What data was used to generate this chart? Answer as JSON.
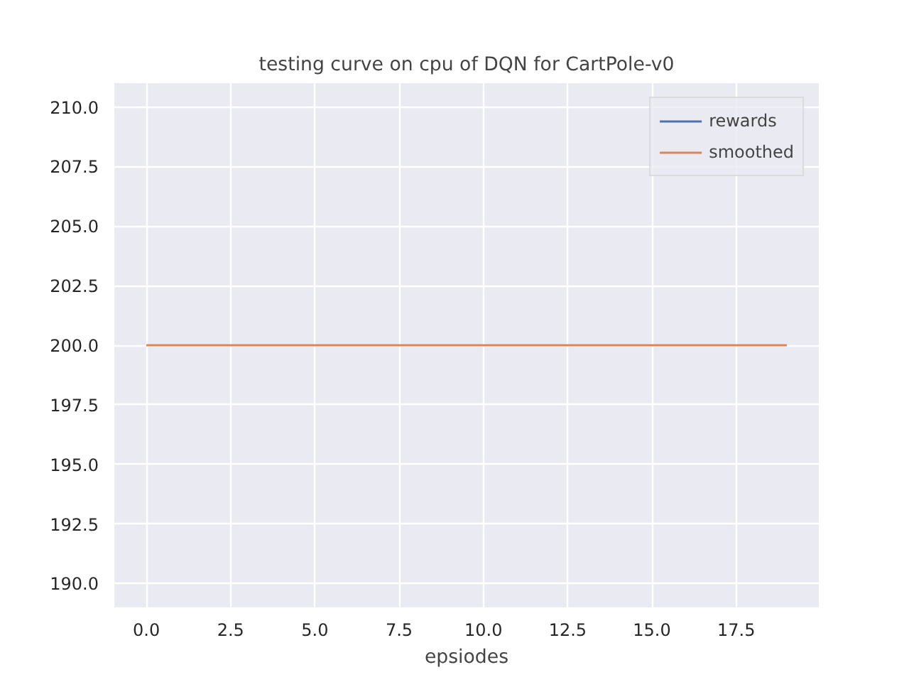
{
  "chart_data": {
    "type": "line",
    "title": "testing curve on cpu of DQN for CartPole-v0",
    "xlabel": "epsiodes",
    "x": [
      0,
      19
    ],
    "series": [
      {
        "name": "rewards",
        "color": "#4c72b0",
        "values": [
          null,
          null
        ]
      },
      {
        "name": "smoothed",
        "color": "#dd8452",
        "values": [
          200,
          200
        ]
      }
    ],
    "xlim": [
      -0.95,
      19.95
    ],
    "ylim": [
      189,
      211
    ],
    "xticks": [
      {
        "value": 0,
        "label": "0.0"
      },
      {
        "value": 2.5,
        "label": "2.5"
      },
      {
        "value": 5,
        "label": "5.0"
      },
      {
        "value": 7.5,
        "label": "7.5"
      },
      {
        "value": 10,
        "label": "10.0"
      },
      {
        "value": 12.5,
        "label": "12.5"
      },
      {
        "value": 15,
        "label": "15.0"
      },
      {
        "value": 17.5,
        "label": "17.5"
      }
    ],
    "yticks": [
      {
        "value": 190,
        "label": "190.0"
      },
      {
        "value": 192.5,
        "label": "192.5"
      },
      {
        "value": 195,
        "label": "195.0"
      },
      {
        "value": 197.5,
        "label": "197.5"
      },
      {
        "value": 200,
        "label": "200.0"
      },
      {
        "value": 202.5,
        "label": "202.5"
      },
      {
        "value": 205,
        "label": "205.0"
      },
      {
        "value": 207.5,
        "label": "207.5"
      },
      {
        "value": 210,
        "label": "210.0"
      }
    ],
    "grid": true,
    "legend": "top right",
    "line_style": "solid"
  }
}
